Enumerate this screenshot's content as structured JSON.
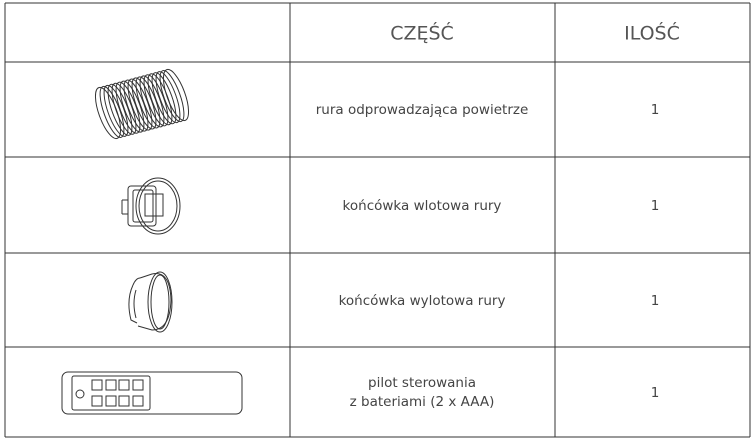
{
  "table": {
    "header": [
      "CZĘŚĆ",
      "ILOŚĆ"
    ],
    "rows": [
      {
        "part": [
          "rura odprowadzająca powietrze"
        ],
        "quantity": 1
      },
      {
        "part": [
          "końcówka wlotowa rury"
        ],
        "quantity": 1
      },
      {
        "part": [
          "końcówka wylotowa rury"
        ],
        "quantity": 1
      },
      {
        "part": [
          "pilot sterowania",
          "z bateriami (2 x AAA)"
        ],
        "quantity": 1
      }
    ]
  }
}
